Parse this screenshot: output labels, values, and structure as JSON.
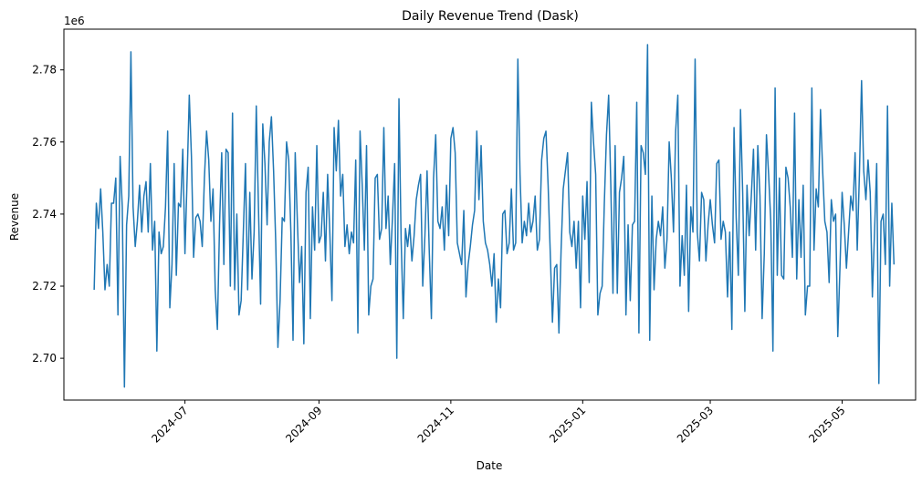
{
  "chart_data": {
    "type": "line",
    "title": "Daily Revenue Trend (Dask)",
    "xlabel": "Date",
    "ylabel": "Revenue",
    "y_offset_label": "1e6",
    "xlim": [
      "2024-05-06",
      "2025-06-04"
    ],
    "ylim": [
      2.6884,
      2.7913
    ],
    "y_ticks": [
      2.7,
      2.72,
      2.74,
      2.76,
      2.78
    ],
    "y_tick_labels": [
      "2.70",
      "2.72",
      "2.74",
      "2.76",
      "2.78"
    ],
    "x_ticks": [
      "2024-07-01",
      "2024-09-01",
      "2024-11-01",
      "2025-01-01",
      "2025-03-01",
      "2025-05-01"
    ],
    "x_tick_labels": [
      "2024-07",
      "2024-09",
      "2024-11",
      "2025-01",
      "2025-03",
      "2025-05"
    ],
    "grid": false,
    "legend": "none",
    "series": [
      {
        "color": "#1f77b4",
        "x_start": "2024-05-20",
        "x_step_days": 1,
        "values": [
          2.719,
          2.743,
          2.736,
          2.747,
          2.735,
          2.719,
          2.726,
          2.72,
          2.743,
          2.743,
          2.75,
          2.712,
          2.756,
          2.742,
          2.692,
          2.737,
          2.745,
          2.785,
          2.742,
          2.731,
          2.738,
          2.748,
          2.735,
          2.745,
          2.749,
          2.735,
          2.754,
          2.73,
          2.738,
          2.702,
          2.735,
          2.729,
          2.731,
          2.742,
          2.763,
          2.714,
          2.726,
          2.754,
          2.723,
          2.743,
          2.742,
          2.758,
          2.729,
          2.75,
          2.773,
          2.756,
          2.728,
          2.739,
          2.74,
          2.738,
          2.731,
          2.75,
          2.763,
          2.755,
          2.738,
          2.747,
          2.719,
          2.708,
          2.737,
          2.757,
          2.726,
          2.758,
          2.757,
          2.72,
          2.768,
          2.719,
          2.74,
          2.712,
          2.716,
          2.735,
          2.754,
          2.719,
          2.746,
          2.722,
          2.735,
          2.77,
          2.742,
          2.715,
          2.765,
          2.754,
          2.737,
          2.76,
          2.767,
          2.752,
          2.732,
          2.703,
          2.716,
          2.739,
          2.738,
          2.76,
          2.755,
          2.735,
          2.705,
          2.757,
          2.738,
          2.721,
          2.731,
          2.704,
          2.746,
          2.753,
          2.711,
          2.742,
          2.73,
          2.759,
          2.732,
          2.734,
          2.746,
          2.727,
          2.751,
          2.735,
          2.716,
          2.764,
          2.752,
          2.766,
          2.745,
          2.751,
          2.731,
          2.737,
          2.729,
          2.735,
          2.732,
          2.755,
          2.707,
          2.763,
          2.748,
          2.73,
          2.759,
          2.712,
          2.72,
          2.722,
          2.75,
          2.751,
          2.733,
          2.736,
          2.764,
          2.736,
          2.745,
          2.726,
          2.739,
          2.754,
          2.7,
          2.772,
          2.733,
          2.711,
          2.736,
          2.731,
          2.737,
          2.727,
          2.734,
          2.744,
          2.748,
          2.751,
          2.72,
          2.734,
          2.752,
          2.73,
          2.711,
          2.75,
          2.762,
          2.738,
          2.736,
          2.742,
          2.73,
          2.748,
          2.734,
          2.761,
          2.764,
          2.757,
          2.732,
          2.729,
          2.726,
          2.741,
          2.717,
          2.726,
          2.731,
          2.737,
          2.741,
          2.763,
          2.744,
          2.759,
          2.738,
          2.732,
          2.73,
          2.726,
          2.72,
          2.729,
          2.71,
          2.722,
          2.714,
          2.74,
          2.741,
          2.729,
          2.732,
          2.747,
          2.73,
          2.732,
          2.783,
          2.751,
          2.732,
          2.738,
          2.734,
          2.743,
          2.735,
          2.738,
          2.745,
          2.73,
          2.733,
          2.755,
          2.761,
          2.763,
          2.748,
          2.729,
          2.71,
          2.725,
          2.726,
          2.707,
          2.73,
          2.747,
          2.752,
          2.757,
          2.735,
          2.731,
          2.738,
          2.725,
          2.738,
          2.714,
          2.745,
          2.733,
          2.749,
          2.721,
          2.771,
          2.76,
          2.751,
          2.712,
          2.718,
          2.72,
          2.743,
          2.762,
          2.773,
          2.748,
          2.718,
          2.759,
          2.718,
          2.746,
          2.75,
          2.756,
          2.712,
          2.737,
          2.716,
          2.737,
          2.738,
          2.771,
          2.707,
          2.759,
          2.757,
          2.751,
          2.787,
          2.705,
          2.745,
          2.719,
          2.733,
          2.738,
          2.734,
          2.742,
          2.725,
          2.733,
          2.76,
          2.75,
          2.735,
          2.763,
          2.773,
          2.72,
          2.734,
          2.723,
          2.748,
          2.713,
          2.742,
          2.735,
          2.783,
          2.735,
          2.727,
          2.746,
          2.744,
          2.727,
          2.737,
          2.744,
          2.737,
          2.732,
          2.754,
          2.755,
          2.733,
          2.738,
          2.735,
          2.717,
          2.735,
          2.708,
          2.764,
          2.739,
          2.723,
          2.769,
          2.746,
          2.713,
          2.748,
          2.734,
          2.745,
          2.758,
          2.73,
          2.759,
          2.745,
          2.711,
          2.729,
          2.762,
          2.751,
          2.738,
          2.702,
          2.775,
          2.723,
          2.75,
          2.723,
          2.722,
          2.753,
          2.75,
          2.742,
          2.728,
          2.768,
          2.722,
          2.744,
          2.728,
          2.748,
          2.712,
          2.72,
          2.72,
          2.775,
          2.73,
          2.747,
          2.742,
          2.769,
          2.752,
          2.738,
          2.735,
          2.721,
          2.744,
          2.738,
          2.74,
          2.706,
          2.725,
          2.746,
          2.737,
          2.725,
          2.735,
          2.745,
          2.741,
          2.757,
          2.73,
          2.751,
          2.777,
          2.752,
          2.744,
          2.755,
          2.746,
          2.717,
          2.735,
          2.754,
          2.693,
          2.738,
          2.74,
          2.726,
          2.77,
          2.72,
          2.743,
          2.726
        ]
      }
    ]
  }
}
